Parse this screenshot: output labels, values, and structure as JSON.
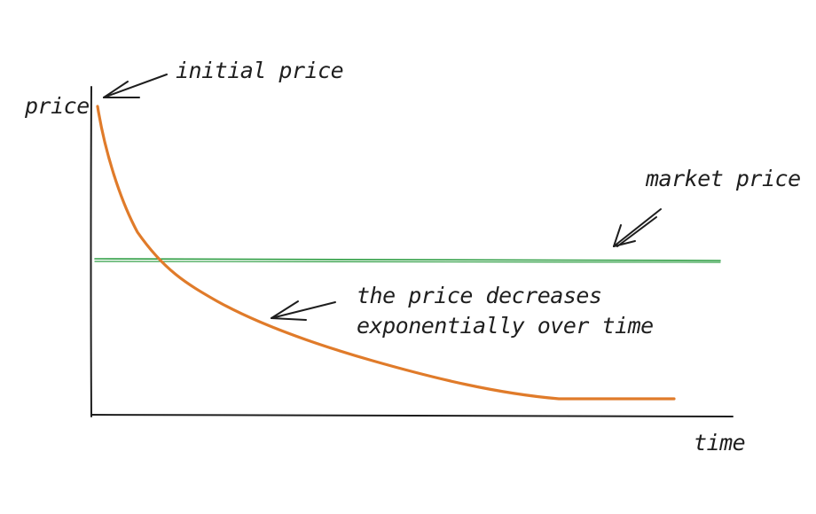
{
  "labels": {
    "y_axis": "price",
    "x_axis": "time",
    "initial_price": "initial price",
    "market_price": "market price",
    "decrease_line1": "the price decreases",
    "decrease_line2": "exponentially over time"
  },
  "colors": {
    "axes": "#1e1e1e",
    "price_curve": "#e07b2a",
    "market_line": "#2f9e44",
    "annotation": "#1e1e1e",
    "background": "#ffffff"
  }
}
